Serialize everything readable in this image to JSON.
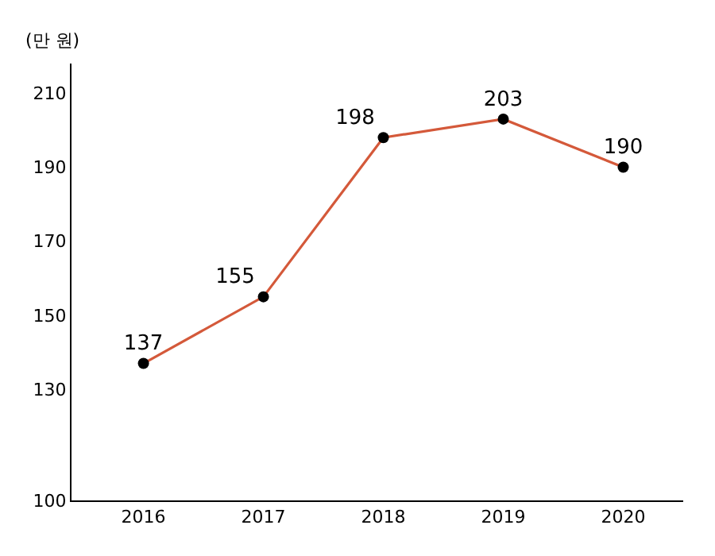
{
  "chart_data": {
    "type": "line",
    "ylabel": "(만 원)",
    "categories": [
      "2016",
      "2017",
      "2018",
      "2019",
      "2020"
    ],
    "series": [
      {
        "color": "#d4593a",
        "values": [
          137,
          155,
          198,
          203,
          190
        ]
      }
    ],
    "ylim": [
      100,
      218
    ],
    "yticks": [
      100,
      130,
      150,
      170,
      190,
      210
    ],
    "data_labels": true,
    "marker": "circle",
    "line_style": "solid",
    "legend": false
  }
}
